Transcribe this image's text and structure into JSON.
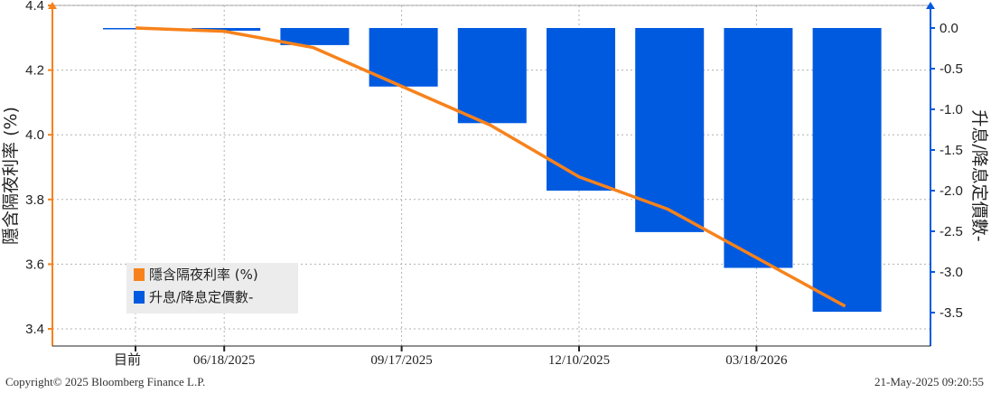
{
  "chart_data": {
    "type": "bar+line",
    "categories": [
      "目前",
      "06/18/2025",
      "",
      "09/17/2025",
      "",
      "12/10/2025",
      "",
      "03/18/2026",
      ""
    ],
    "x_tick_labels": [
      "目前",
      "06/18/2025",
      "09/17/2025",
      "12/10/2025",
      "03/18/2026"
    ],
    "left_axis": {
      "label": "隱含隔夜利率 (%)",
      "ylim": [
        3.4,
        4.4
      ],
      "ticks": [
        "4.4",
        "4.2",
        "4.0",
        "3.8",
        "3.6",
        "3.4"
      ]
    },
    "right_axis": {
      "label": "升息/降息定價數-",
      "ylim": [
        -3.75,
        0.25
      ],
      "ticks": [
        "0.0",
        "-0.5",
        "-1.0",
        "-1.5",
        "-2.0",
        "-2.5",
        "-3.0",
        "-3.5"
      ]
    },
    "series": [
      {
        "name": "隱含隔夜利率 (%)",
        "type": "line",
        "axis": "left",
        "color": "#f7821b",
        "values": [
          4.33,
          4.32,
          4.27,
          4.15,
          4.03,
          3.87,
          3.77,
          3.62,
          3.47
        ]
      },
      {
        "name": "升息/降息定價數-",
        "type": "bar",
        "axis": "right",
        "color": "#005ae0",
        "values": [
          0.0,
          -0.02,
          -0.21,
          -0.72,
          -1.17,
          -2.0,
          -2.51,
          -2.95,
          -3.49
        ]
      }
    ],
    "legend_position": "bottom-left",
    "grid": true
  },
  "footer": {
    "copyright": "Copyright© 2025 Bloomberg Finance L.P.",
    "timestamp": "21-May-2025 09:20:55"
  }
}
